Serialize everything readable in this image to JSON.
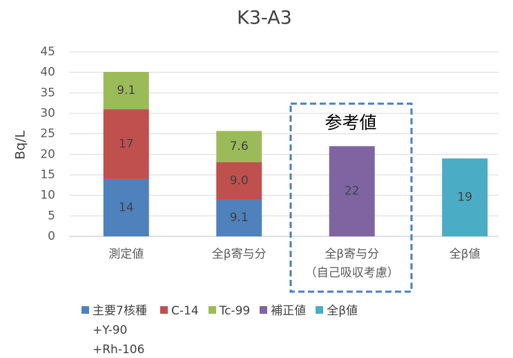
{
  "chart_data": {
    "type": "stacked_bar",
    "title": "K3-A3",
    "y_label": "Bq/L",
    "categories": [
      [
        "測定値"
      ],
      [
        "全β寄与分"
      ],
      [
        "全β寄与分",
        "（自己吸収考慮）"
      ],
      [
        "全β値"
      ]
    ],
    "series": [
      {
        "name": "主要7核種 +Y-90 +Rh-106",
        "color": "#4f81bd",
        "values": [
          14,
          9.1,
          null,
          null
        ]
      },
      {
        "name": "C-14",
        "color": "#c0504d",
        "values": [
          17,
          9,
          null,
          null
        ],
        "value_labels": [
          null,
          "9.0",
          null,
          null
        ]
      },
      {
        "name": "Tc-99",
        "color": "#9bbb59",
        "values": [
          9.1,
          7.6,
          null,
          null
        ]
      },
      {
        "name": "補正値",
        "color": "#8064a2",
        "values": [
          null,
          null,
          22,
          null
        ]
      },
      {
        "name": "全β値",
        "color": "#4bacc6",
        "values": [
          null,
          null,
          null,
          19
        ]
      }
    ],
    "annotation": "参考値",
    "ylim": [
      0,
      45
    ],
    "yticks": [
      0,
      5,
      10,
      15,
      20,
      25,
      30,
      35,
      40,
      45
    ],
    "grid": true
  }
}
